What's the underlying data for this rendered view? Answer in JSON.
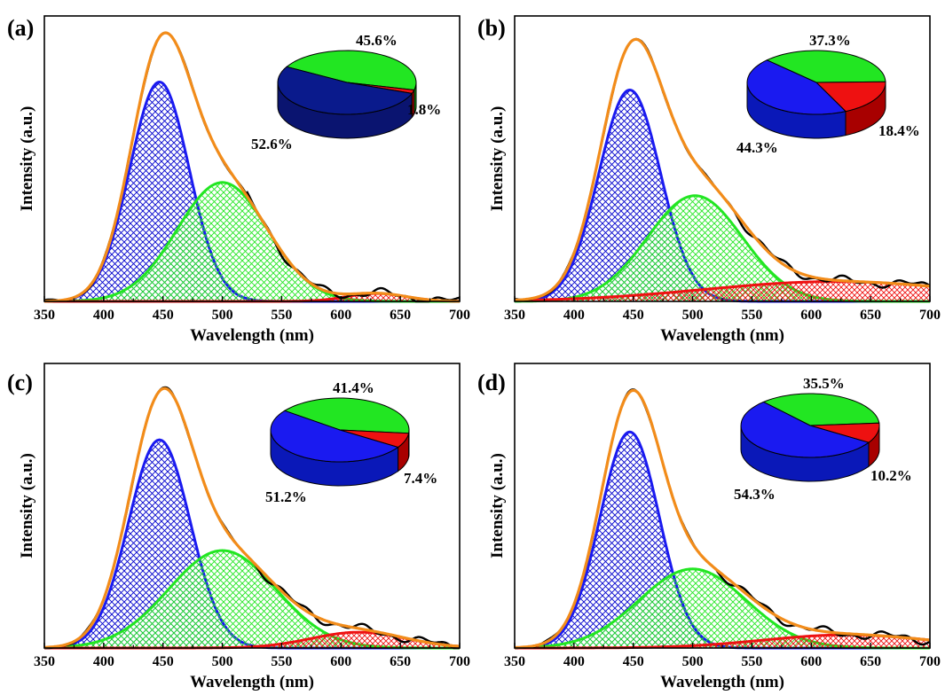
{
  "colors": {
    "blue": "#1a1af0",
    "green": "#22e622",
    "red": "#ee1111",
    "orange": "#f28c1a",
    "black": "#000000",
    "blue_fill": "#0000cc",
    "navy": "#0a1a8c",
    "navy_side": "#0a1470",
    "blue_side": "#0a18b8",
    "green_side": "#15a015",
    "red_side": "#a80000"
  },
  "chart_data": [
    {
      "type": "line",
      "panel": "(a)",
      "xlabel": "Wavelength (nm)",
      "ylabel": "Intensity (a.u.)",
      "xlim": [
        350,
        700
      ],
      "ylim": [
        0,
        1.08
      ],
      "xticks": [
        "350",
        "400",
        "450",
        "500",
        "550",
        "600",
        "650",
        "700"
      ],
      "series": [
        {
          "component": "blue",
          "center": 447,
          "height": 0.83,
          "width": 25
        },
        {
          "component": "green",
          "center": 500,
          "height": 0.45,
          "width": 38
        },
        {
          "component": "red",
          "center": 630,
          "height": 0.03,
          "width": 25
        }
      ],
      "pie": {
        "slices": [
          {
            "component": "green",
            "value": 45.6,
            "label": "45.6%"
          },
          {
            "component": "red",
            "value": 1.8,
            "label": "1.8%"
          },
          {
            "component": "blue",
            "value": 52.6,
            "label": "52.6%"
          }
        ]
      }
    },
    {
      "type": "line",
      "panel": "(b)",
      "xlabel": "Wavelength (nm)",
      "ylabel": "Intensity (a.u.)",
      "xlim": [
        350,
        700
      ],
      "ylim": [
        0,
        1.08
      ],
      "xticks": [
        "350",
        "400",
        "450",
        "500",
        "550",
        "600",
        "650",
        "700"
      ],
      "series": [
        {
          "component": "blue",
          "center": 447,
          "height": 0.8,
          "width": 26
        },
        {
          "component": "green",
          "center": 502,
          "height": 0.4,
          "width": 40
        },
        {
          "component": "red",
          "center": 620,
          "height": 0.075,
          "width": 110
        }
      ],
      "pie": {
        "slices": [
          {
            "component": "green",
            "value": 37.3,
            "label": "37.3%"
          },
          {
            "component": "red",
            "value": 18.4,
            "label": "18.4%"
          },
          {
            "component": "blue",
            "value": 44.3,
            "label": "44.3%"
          }
        ]
      }
    },
    {
      "type": "line",
      "panel": "(c)",
      "xlabel": "Wavelength (nm)",
      "ylabel": "Intensity (a.u.)",
      "xlim": [
        350,
        700
      ],
      "ylim": [
        0,
        1.08
      ],
      "xticks": [
        "350",
        "400",
        "450",
        "500",
        "550",
        "600",
        "650",
        "700"
      ],
      "series": [
        {
          "component": "blue",
          "center": 447,
          "height": 0.79,
          "width": 26
        },
        {
          "component": "green",
          "center": 500,
          "height": 0.37,
          "width": 45
        },
        {
          "component": "red",
          "center": 615,
          "height": 0.06,
          "width": 40
        }
      ],
      "pie": {
        "slices": [
          {
            "component": "green",
            "value": 41.4,
            "label": "41.4%"
          },
          {
            "component": "red",
            "value": 7.4,
            "label": "7.4%"
          },
          {
            "component": "blue",
            "value": 51.2,
            "label": "51.2%"
          }
        ]
      }
    },
    {
      "type": "line",
      "panel": "(d)",
      "xlabel": "Wavelength (nm)",
      "ylabel": "Intensity (a.u.)",
      "xlim": [
        350,
        700
      ],
      "ylim": [
        0,
        1.08
      ],
      "xticks": [
        "350",
        "400",
        "450",
        "500",
        "550",
        "600",
        "650",
        "700"
      ],
      "series": [
        {
          "component": "blue",
          "center": 447,
          "height": 0.82,
          "width": 25
        },
        {
          "component": "green",
          "center": 500,
          "height": 0.3,
          "width": 45
        },
        {
          "component": "red",
          "center": 630,
          "height": 0.05,
          "width": 70
        }
      ],
      "pie": {
        "slices": [
          {
            "component": "green",
            "value": 35.5,
            "label": "35.5%"
          },
          {
            "component": "red",
            "value": 10.2,
            "label": "10.2%"
          },
          {
            "component": "blue",
            "value": 54.3,
            "label": "54.3%"
          }
        ]
      }
    }
  ]
}
